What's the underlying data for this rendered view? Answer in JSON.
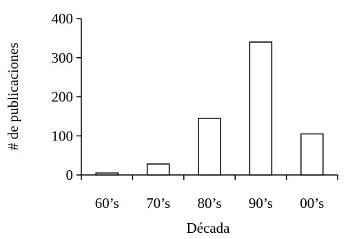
{
  "chart_data": {
    "type": "bar",
    "title": "",
    "xlabel": "Década",
    "ylabel": "# de publicaciones",
    "categories": [
      "60’s",
      "70’s",
      "80’s",
      "90’s",
      "00’s"
    ],
    "values": [
      5,
      28,
      145,
      340,
      105
    ],
    "ylim": [
      0,
      400
    ],
    "yticks": [
      "0",
      "100",
      "200",
      "300",
      "400"
    ],
    "grid": false,
    "legend": "none",
    "bar_fill": "#ffffff",
    "bar_stroke": "#000000",
    "axis_color": "#000000"
  }
}
